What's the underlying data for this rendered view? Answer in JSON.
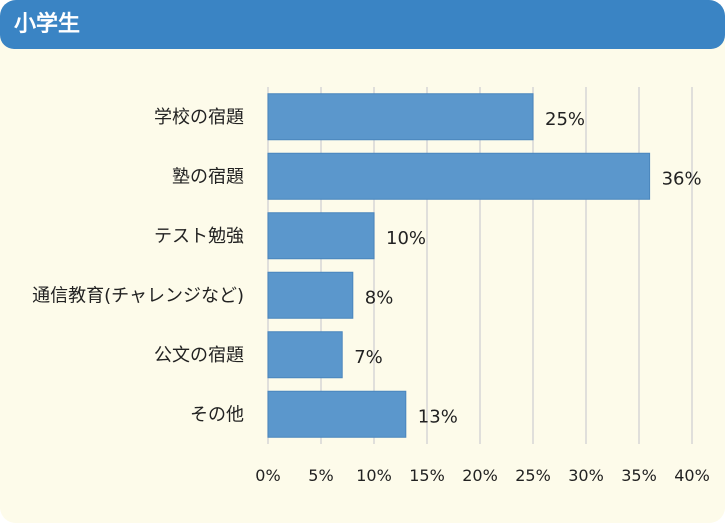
{
  "header": {
    "title": "小学生"
  },
  "chart_data": {
    "type": "bar",
    "orientation": "horizontal",
    "categories": [
      "学校の宿題",
      "塾の宿題",
      "テスト勉強",
      "通信教育(チャレンジなど)",
      "公文の宿題",
      "その他"
    ],
    "values": [
      25,
      36,
      10,
      8,
      7,
      13
    ],
    "value_labels": [
      "25%",
      "36%",
      "10%",
      "8%",
      "7%",
      "13%"
    ],
    "xlim": [
      0,
      40
    ],
    "xticks": [
      "0%",
      "5%",
      "10%",
      "15%",
      "20%",
      "25%",
      "30%",
      "35%",
      "40%"
    ],
    "grid": true,
    "legend": "none",
    "colors": {
      "bar": "#5b97cc",
      "bar_border": "#4a86bd",
      "grid": "#d6d6d6",
      "header": "#3a84c4",
      "background": "#fdfbea"
    }
  }
}
